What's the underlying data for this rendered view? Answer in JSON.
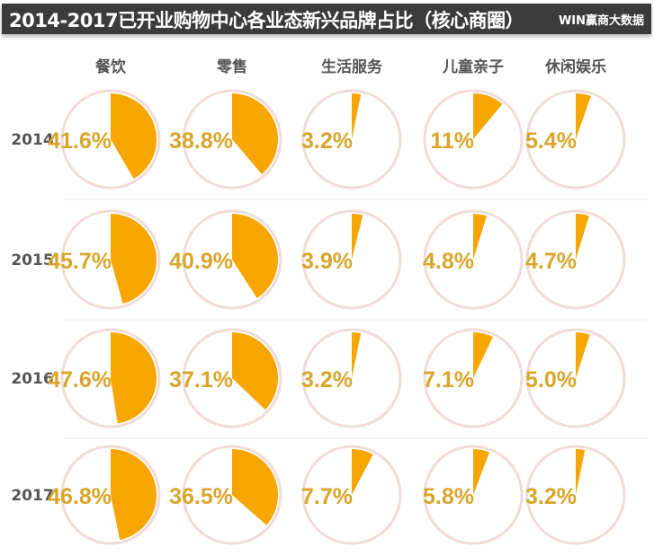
{
  "chart_data": {
    "type": "pie",
    "title": "2014-2017已开业购物中心各业态新兴品牌占比（核心商圈）",
    "brand": "WIN赢商大数据",
    "categories": [
      "餐饮",
      "零售",
      "生活服务",
      "儿童亲子",
      "休闲娱乐"
    ],
    "years": [
      "2014",
      "2015",
      "2016",
      "2017"
    ],
    "labels": [
      [
        "41.6%",
        "38.8%",
        "3.2%",
        "11%",
        "5.4%"
      ],
      [
        "45.7%",
        "40.9%",
        "3.9%",
        "4.8%",
        "4.7%"
      ],
      [
        "47.6%",
        "37.1%",
        "3.2%",
        "7.1%",
        "5.0%"
      ],
      [
        "46.8%",
        "36.5%",
        "7.7%",
        "5.8%",
        "3.2%"
      ]
    ],
    "values": [
      [
        41.6,
        38.8,
        3.2,
        11,
        5.4
      ],
      [
        45.7,
        40.9,
        3.9,
        4.8,
        4.7
      ],
      [
        47.6,
        37.1,
        3.2,
        7.1,
        5.0
      ],
      [
        46.8,
        36.5,
        7.7,
        5.8,
        3.2
      ]
    ],
    "colors": {
      "slice": "#f7a600",
      "label": "#d9a52a",
      "ring": "#efdcd8",
      "titlebar": "#3b3b3b"
    }
  }
}
